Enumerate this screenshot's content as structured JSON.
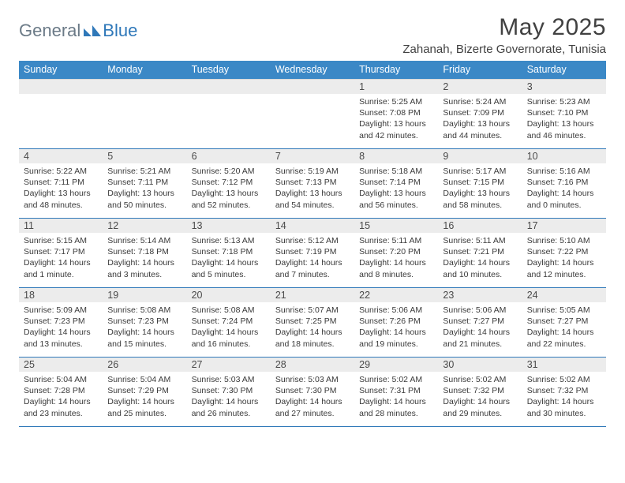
{
  "logo": {
    "text1": "General",
    "text2": "Blue"
  },
  "title": "May 2025",
  "location": "Zahanah, Bizerte Governorate, Tunisia",
  "header_bg": "#3b88c6",
  "days": [
    "Sunday",
    "Monday",
    "Tuesday",
    "Wednesday",
    "Thursday",
    "Friday",
    "Saturday"
  ],
  "weeks": [
    [
      null,
      null,
      null,
      null,
      {
        "n": "1",
        "sr": "5:25 AM",
        "ss": "7:08 PM",
        "dl": "13 hours and 42 minutes."
      },
      {
        "n": "2",
        "sr": "5:24 AM",
        "ss": "7:09 PM",
        "dl": "13 hours and 44 minutes."
      },
      {
        "n": "3",
        "sr": "5:23 AM",
        "ss": "7:10 PM",
        "dl": "13 hours and 46 minutes."
      }
    ],
    [
      {
        "n": "4",
        "sr": "5:22 AM",
        "ss": "7:11 PM",
        "dl": "13 hours and 48 minutes."
      },
      {
        "n": "5",
        "sr": "5:21 AM",
        "ss": "7:11 PM",
        "dl": "13 hours and 50 minutes."
      },
      {
        "n": "6",
        "sr": "5:20 AM",
        "ss": "7:12 PM",
        "dl": "13 hours and 52 minutes."
      },
      {
        "n": "7",
        "sr": "5:19 AM",
        "ss": "7:13 PM",
        "dl": "13 hours and 54 minutes."
      },
      {
        "n": "8",
        "sr": "5:18 AM",
        "ss": "7:14 PM",
        "dl": "13 hours and 56 minutes."
      },
      {
        "n": "9",
        "sr": "5:17 AM",
        "ss": "7:15 PM",
        "dl": "13 hours and 58 minutes."
      },
      {
        "n": "10",
        "sr": "5:16 AM",
        "ss": "7:16 PM",
        "dl": "14 hours and 0 minutes."
      }
    ],
    [
      {
        "n": "11",
        "sr": "5:15 AM",
        "ss": "7:17 PM",
        "dl": "14 hours and 1 minute."
      },
      {
        "n": "12",
        "sr": "5:14 AM",
        "ss": "7:18 PM",
        "dl": "14 hours and 3 minutes."
      },
      {
        "n": "13",
        "sr": "5:13 AM",
        "ss": "7:18 PM",
        "dl": "14 hours and 5 minutes."
      },
      {
        "n": "14",
        "sr": "5:12 AM",
        "ss": "7:19 PM",
        "dl": "14 hours and 7 minutes."
      },
      {
        "n": "15",
        "sr": "5:11 AM",
        "ss": "7:20 PM",
        "dl": "14 hours and 8 minutes."
      },
      {
        "n": "16",
        "sr": "5:11 AM",
        "ss": "7:21 PM",
        "dl": "14 hours and 10 minutes."
      },
      {
        "n": "17",
        "sr": "5:10 AM",
        "ss": "7:22 PM",
        "dl": "14 hours and 12 minutes."
      }
    ],
    [
      {
        "n": "18",
        "sr": "5:09 AM",
        "ss": "7:23 PM",
        "dl": "14 hours and 13 minutes."
      },
      {
        "n": "19",
        "sr": "5:08 AM",
        "ss": "7:23 PM",
        "dl": "14 hours and 15 minutes."
      },
      {
        "n": "20",
        "sr": "5:08 AM",
        "ss": "7:24 PM",
        "dl": "14 hours and 16 minutes."
      },
      {
        "n": "21",
        "sr": "5:07 AM",
        "ss": "7:25 PM",
        "dl": "14 hours and 18 minutes."
      },
      {
        "n": "22",
        "sr": "5:06 AM",
        "ss": "7:26 PM",
        "dl": "14 hours and 19 minutes."
      },
      {
        "n": "23",
        "sr": "5:06 AM",
        "ss": "7:27 PM",
        "dl": "14 hours and 21 minutes."
      },
      {
        "n": "24",
        "sr": "5:05 AM",
        "ss": "7:27 PM",
        "dl": "14 hours and 22 minutes."
      }
    ],
    [
      {
        "n": "25",
        "sr": "5:04 AM",
        "ss": "7:28 PM",
        "dl": "14 hours and 23 minutes."
      },
      {
        "n": "26",
        "sr": "5:04 AM",
        "ss": "7:29 PM",
        "dl": "14 hours and 25 minutes."
      },
      {
        "n": "27",
        "sr": "5:03 AM",
        "ss": "7:30 PM",
        "dl": "14 hours and 26 minutes."
      },
      {
        "n": "28",
        "sr": "5:03 AM",
        "ss": "7:30 PM",
        "dl": "14 hours and 27 minutes."
      },
      {
        "n": "29",
        "sr": "5:02 AM",
        "ss": "7:31 PM",
        "dl": "14 hours and 28 minutes."
      },
      {
        "n": "30",
        "sr": "5:02 AM",
        "ss": "7:32 PM",
        "dl": "14 hours and 29 minutes."
      },
      {
        "n": "31",
        "sr": "5:02 AM",
        "ss": "7:32 PM",
        "dl": "14 hours and 30 minutes."
      }
    ]
  ],
  "labels": {
    "sunrise": "Sunrise: ",
    "sunset": "Sunset: ",
    "daylight": "Daylight: "
  }
}
